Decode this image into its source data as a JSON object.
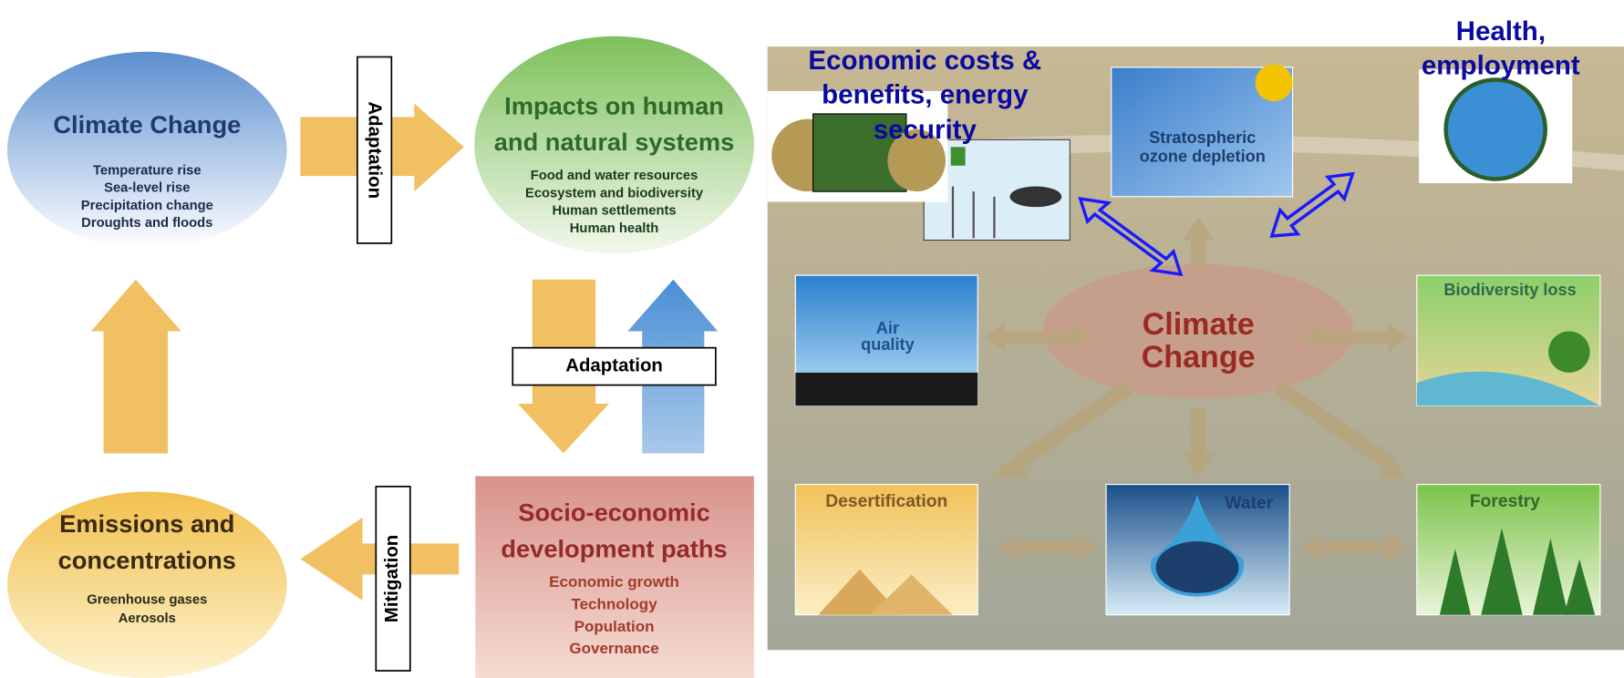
{
  "left": {
    "climate": {
      "title": "Climate Change",
      "items": [
        "Temperature rise",
        "Sea-level rise",
        "Precipitation change",
        "Droughts and floods"
      ]
    },
    "impacts": {
      "title_lines": [
        "Impacts on human",
        "and natural systems"
      ],
      "items": [
        "Food and water resources",
        "Ecosystem and biodiversity",
        "Human settlements",
        "Human health"
      ]
    },
    "socio": {
      "title_lines": [
        "Socio-economic",
        "development paths"
      ],
      "items": [
        "Economic growth",
        "Technology",
        "Population",
        "Governance"
      ]
    },
    "emissions": {
      "title_lines": [
        "Emissions and",
        "concentrations"
      ],
      "items": [
        "Greenhouse gases",
        "Aerosols"
      ]
    },
    "arrow_labels": [
      "Adaptation",
      "Adaptation",
      "Mitigation"
    ]
  },
  "right": {
    "center_lines": [
      "Climate",
      "Change"
    ],
    "ozone_lines": [
      "Stratospheric",
      "ozone depletion"
    ],
    "air_lines": [
      "Air",
      "quality"
    ],
    "biodiversity": "Biodiversity loss",
    "desertification": "Desertification",
    "water": "Water",
    "forestry": "Forestry",
    "economic_lines": [
      "Economic costs &",
      "benefits, energy",
      "security"
    ],
    "health_lines": [
      "Health,",
      "employment"
    ]
  }
}
